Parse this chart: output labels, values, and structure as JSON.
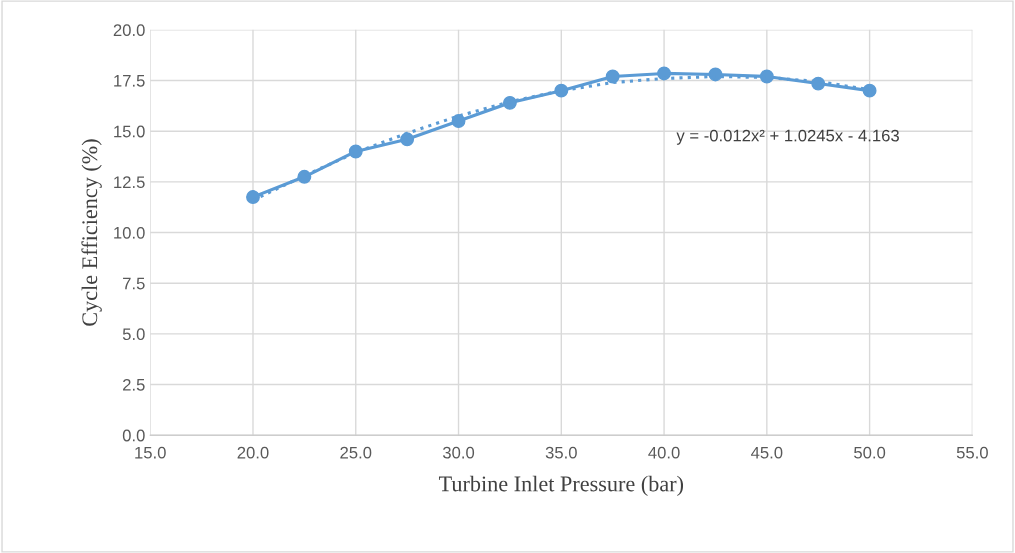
{
  "chart_data": {
    "type": "line",
    "xlabel": "Turbine Inlet Pressure (bar)",
    "ylabel": "Cycle Efficiency (%)",
    "xlim": [
      15,
      55
    ],
    "xticks": [
      {
        "value": 15,
        "label": "15.0"
      },
      {
        "value": 20,
        "label": "20.0"
      },
      {
        "value": 25,
        "label": "25.0"
      },
      {
        "value": 30,
        "label": "30.0"
      },
      {
        "value": 35,
        "label": "35.0"
      },
      {
        "value": 40,
        "label": "40.0"
      },
      {
        "value": 45,
        "label": "45.0"
      },
      {
        "value": 50,
        "label": "50.0"
      },
      {
        "value": 55,
        "label": "55.0"
      }
    ],
    "ylim": [
      0,
      20
    ],
    "yticks": [
      {
        "value": 0,
        "label": "0.0"
      },
      {
        "value": 2.5,
        "label": "2.5"
      },
      {
        "value": 5,
        "label": "5.0"
      },
      {
        "value": 7.5,
        "label": "7.5"
      },
      {
        "value": 10,
        "label": "10.0"
      },
      {
        "value": 12.5,
        "label": "12.5"
      },
      {
        "value": 15,
        "label": "15.0"
      },
      {
        "value": 17.5,
        "label": "17.5"
      },
      {
        "value": 20,
        "label": "20.0"
      }
    ],
    "grid": true,
    "legend": false,
    "series": [
      {
        "color": "#5b9bd5",
        "marker": "circle",
        "line_style": "solid",
        "x": [
          20,
          22.5,
          25,
          27.5,
          30,
          32.5,
          35,
          37.5,
          40,
          42.5,
          45,
          47.5,
          50
        ],
        "values": [
          11.75,
          12.75,
          14.0,
          14.6,
          15.5,
          16.4,
          17.0,
          17.7,
          17.85,
          17.8,
          17.7,
          17.35,
          17.0
        ]
      },
      {
        "color": "#5b9bd5",
        "marker": "none",
        "line_style": "dotted",
        "x": [
          20,
          22.5,
          25,
          27.5,
          30,
          32.5,
          35,
          37.5,
          40,
          42.5,
          45,
          47.5,
          50
        ],
        "values": [
          11.6,
          12.8,
          13.95,
          14.9,
          15.75,
          16.45,
          17.0,
          17.4,
          17.6,
          17.7,
          17.65,
          17.45,
          17.05
        ]
      }
    ],
    "annotations": [
      "y = -0.012x² + 1.0245x - 4.163"
    ]
  }
}
